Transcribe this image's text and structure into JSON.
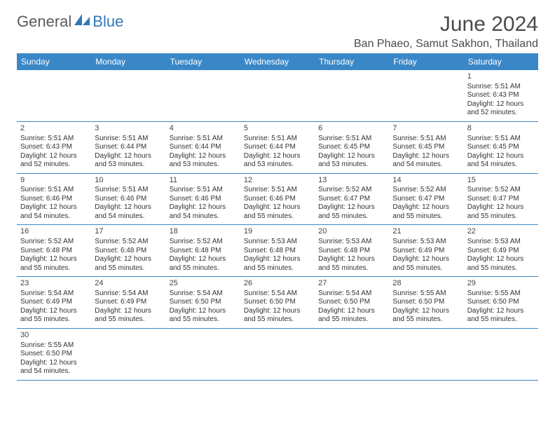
{
  "brand": {
    "name_part1": "General",
    "name_part2": "Blue"
  },
  "title": "June 2024",
  "location": "Ban Phaeo, Samut Sakhon, Thailand",
  "colors": {
    "header_bg": "#3a87c7",
    "header_text": "#ffffff",
    "row_border": "#3a87c7",
    "body_text": "#333333",
    "title_text": "#4a4a4a",
    "brand_gray": "#5a5a5a",
    "brand_blue": "#2f79b9",
    "page_bg": "#ffffff"
  },
  "typography": {
    "title_fontsize": 30,
    "location_fontsize": 16,
    "weekday_fontsize": 12,
    "daynum_fontsize": 11,
    "body_fontsize": 10
  },
  "calendar": {
    "type": "table",
    "weekdays": [
      "Sunday",
      "Monday",
      "Tuesday",
      "Wednesday",
      "Thursday",
      "Friday",
      "Saturday"
    ],
    "weeks": [
      [
        null,
        null,
        null,
        null,
        null,
        null,
        {
          "n": "1",
          "sunrise": "5:51 AM",
          "sunset": "6:43 PM",
          "daylight": "12 hours and 52 minutes."
        }
      ],
      [
        {
          "n": "2",
          "sunrise": "5:51 AM",
          "sunset": "6:43 PM",
          "daylight": "12 hours and 52 minutes."
        },
        {
          "n": "3",
          "sunrise": "5:51 AM",
          "sunset": "6:44 PM",
          "daylight": "12 hours and 53 minutes."
        },
        {
          "n": "4",
          "sunrise": "5:51 AM",
          "sunset": "6:44 PM",
          "daylight": "12 hours and 53 minutes."
        },
        {
          "n": "5",
          "sunrise": "5:51 AM",
          "sunset": "6:44 PM",
          "daylight": "12 hours and 53 minutes."
        },
        {
          "n": "6",
          "sunrise": "5:51 AM",
          "sunset": "6:45 PM",
          "daylight": "12 hours and 53 minutes."
        },
        {
          "n": "7",
          "sunrise": "5:51 AM",
          "sunset": "6:45 PM",
          "daylight": "12 hours and 54 minutes."
        },
        {
          "n": "8",
          "sunrise": "5:51 AM",
          "sunset": "6:45 PM",
          "daylight": "12 hours and 54 minutes."
        }
      ],
      [
        {
          "n": "9",
          "sunrise": "5:51 AM",
          "sunset": "6:46 PM",
          "daylight": "12 hours and 54 minutes."
        },
        {
          "n": "10",
          "sunrise": "5:51 AM",
          "sunset": "6:46 PM",
          "daylight": "12 hours and 54 minutes."
        },
        {
          "n": "11",
          "sunrise": "5:51 AM",
          "sunset": "6:46 PM",
          "daylight": "12 hours and 54 minutes."
        },
        {
          "n": "12",
          "sunrise": "5:51 AM",
          "sunset": "6:46 PM",
          "daylight": "12 hours and 55 minutes."
        },
        {
          "n": "13",
          "sunrise": "5:52 AM",
          "sunset": "6:47 PM",
          "daylight": "12 hours and 55 minutes."
        },
        {
          "n": "14",
          "sunrise": "5:52 AM",
          "sunset": "6:47 PM",
          "daylight": "12 hours and 55 minutes."
        },
        {
          "n": "15",
          "sunrise": "5:52 AM",
          "sunset": "6:47 PM",
          "daylight": "12 hours and 55 minutes."
        }
      ],
      [
        {
          "n": "16",
          "sunrise": "5:52 AM",
          "sunset": "6:48 PM",
          "daylight": "12 hours and 55 minutes."
        },
        {
          "n": "17",
          "sunrise": "5:52 AM",
          "sunset": "6:48 PM",
          "daylight": "12 hours and 55 minutes."
        },
        {
          "n": "18",
          "sunrise": "5:52 AM",
          "sunset": "6:48 PM",
          "daylight": "12 hours and 55 minutes."
        },
        {
          "n": "19",
          "sunrise": "5:53 AM",
          "sunset": "6:48 PM",
          "daylight": "12 hours and 55 minutes."
        },
        {
          "n": "20",
          "sunrise": "5:53 AM",
          "sunset": "6:48 PM",
          "daylight": "12 hours and 55 minutes."
        },
        {
          "n": "21",
          "sunrise": "5:53 AM",
          "sunset": "6:49 PM",
          "daylight": "12 hours and 55 minutes."
        },
        {
          "n": "22",
          "sunrise": "5:53 AM",
          "sunset": "6:49 PM",
          "daylight": "12 hours and 55 minutes."
        }
      ],
      [
        {
          "n": "23",
          "sunrise": "5:54 AM",
          "sunset": "6:49 PM",
          "daylight": "12 hours and 55 minutes."
        },
        {
          "n": "24",
          "sunrise": "5:54 AM",
          "sunset": "6:49 PM",
          "daylight": "12 hours and 55 minutes."
        },
        {
          "n": "25",
          "sunrise": "5:54 AM",
          "sunset": "6:50 PM",
          "daylight": "12 hours and 55 minutes."
        },
        {
          "n": "26",
          "sunrise": "5:54 AM",
          "sunset": "6:50 PM",
          "daylight": "12 hours and 55 minutes."
        },
        {
          "n": "27",
          "sunrise": "5:54 AM",
          "sunset": "6:50 PM",
          "daylight": "12 hours and 55 minutes."
        },
        {
          "n": "28",
          "sunrise": "5:55 AM",
          "sunset": "6:50 PM",
          "daylight": "12 hours and 55 minutes."
        },
        {
          "n": "29",
          "sunrise": "5:55 AM",
          "sunset": "6:50 PM",
          "daylight": "12 hours and 55 minutes."
        }
      ],
      [
        {
          "n": "30",
          "sunrise": "5:55 AM",
          "sunset": "6:50 PM",
          "daylight": "12 hours and 54 minutes."
        },
        null,
        null,
        null,
        null,
        null,
        null
      ]
    ],
    "labels": {
      "sunrise": "Sunrise:",
      "sunset": "Sunset:",
      "daylight": "Daylight:"
    }
  }
}
